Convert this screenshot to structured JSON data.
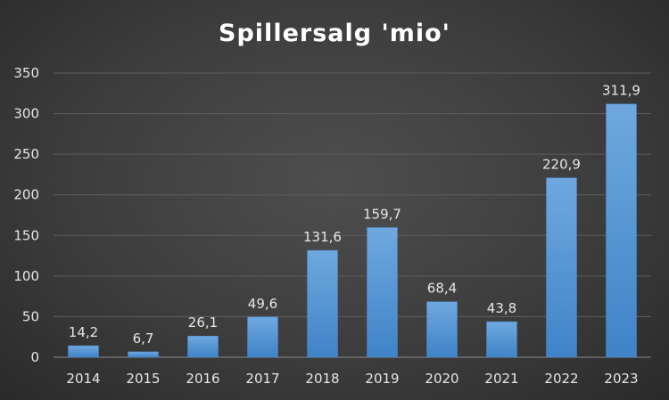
{
  "chart_data": {
    "type": "bar",
    "title": "Spillersalg 'mio'",
    "categories": [
      "2014",
      "2015",
      "2016",
      "2017",
      "2018",
      "2019",
      "2020",
      "2021",
      "2022",
      "2023"
    ],
    "values": [
      14.2,
      6.7,
      26.1,
      49.6,
      131.6,
      159.7,
      68.4,
      43.8,
      220.9,
      311.9
    ],
    "data_labels": [
      "14,2",
      "6,7",
      "26,1",
      "49,6",
      "131,6",
      "159,7",
      "68,4",
      "43,8",
      "220,9",
      "311,9"
    ],
    "y_ticks": [
      "0",
      "50",
      "100",
      "150",
      "200",
      "250",
      "300",
      "350"
    ],
    "ylim": [
      0,
      350
    ],
    "xlabel": "",
    "ylabel": "",
    "grid": true,
    "legend": "none",
    "bar_color": "#5b9bd5"
  }
}
